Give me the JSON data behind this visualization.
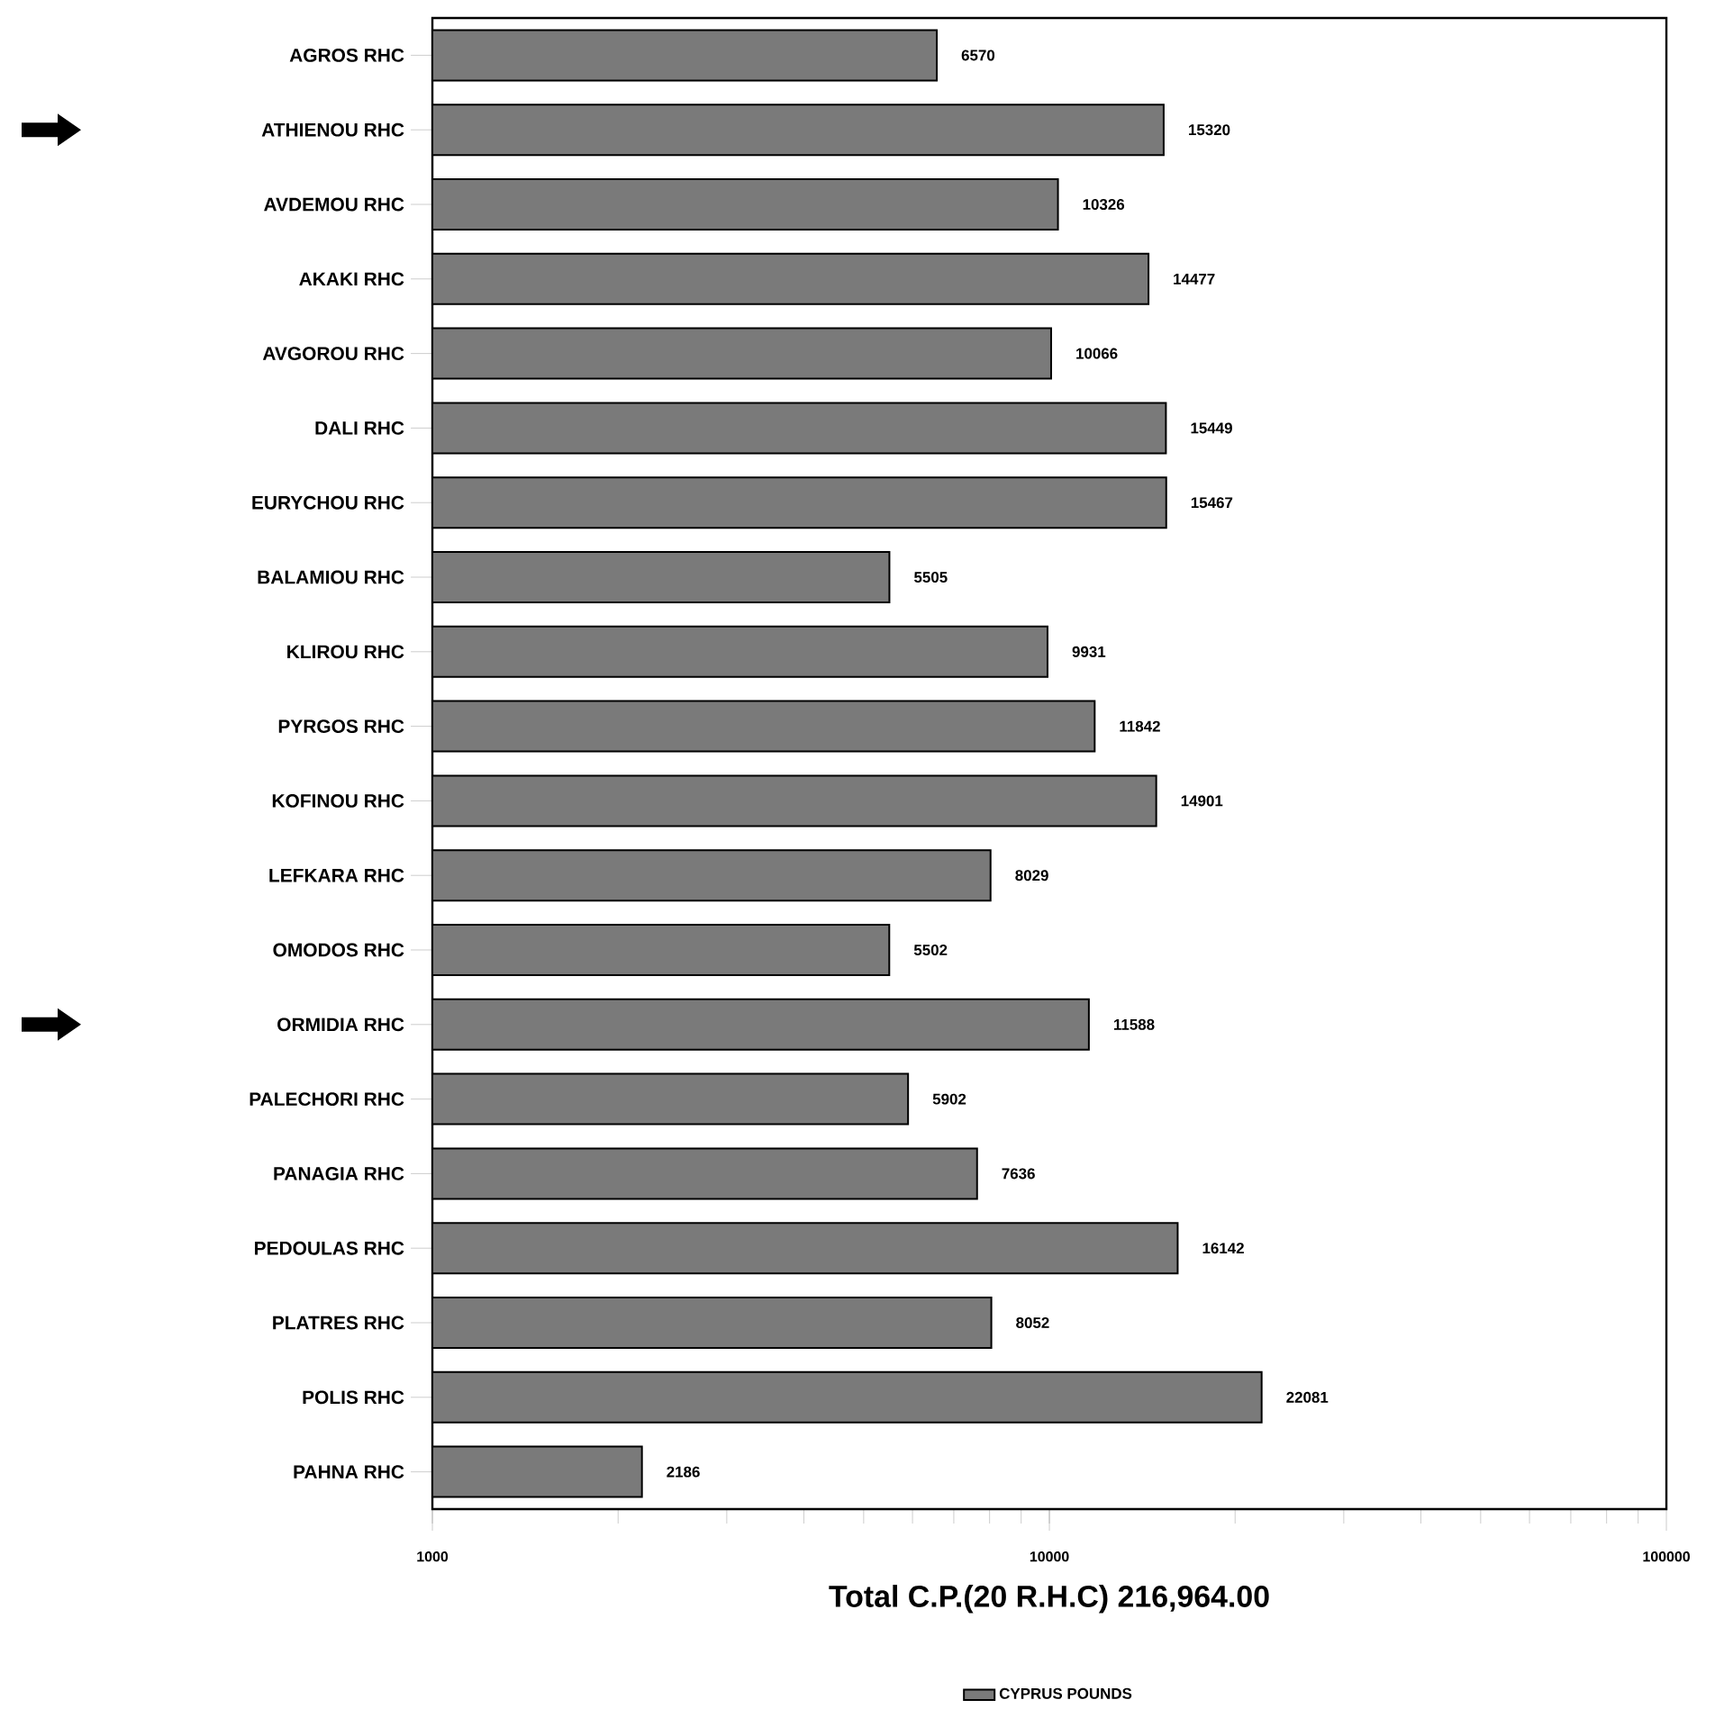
{
  "chart_data": {
    "type": "bar",
    "orientation": "horizontal",
    "log": "x",
    "xlabel": "Total C.P.(20 R.H.C) 216,964.00",
    "categories": [
      "AGROS RHC",
      "ATHIENOU RHC",
      "AVDEMOU RHC",
      "AKAKI RHC",
      "AVGOROU RHC",
      "DALI RHC",
      "EURYCHOU RHC",
      "BALAMIOU RHC",
      "KLIROU RHC",
      "PYRGOS RHC",
      "KOFINOU RHC",
      "LEFKARA RHC",
      "OMODOS RHC",
      "ORMIDIA RHC",
      "PALECHORI RHC",
      "PANAGIA RHC",
      "PEDOULAS RHC",
      "PLATRES RHC",
      "POLIS RHC",
      "PAHNA RHC"
    ],
    "series": [
      {
        "name": "CYPRUS POUNDS",
        "color": "#7a7a7a",
        "values": [
          6570,
          15320,
          10326,
          14477,
          10066,
          15449,
          15467,
          5505,
          9931,
          11842,
          14901,
          8029,
          5502,
          11588,
          5902,
          7636,
          16142,
          8052,
          22081,
          2186
        ]
      }
    ],
    "xlim": [
      1000,
      100000
    ],
    "xticks": [
      1000,
      10000,
      100000
    ],
    "data_labels": true,
    "legend": "bottom",
    "grid": false
  }
}
